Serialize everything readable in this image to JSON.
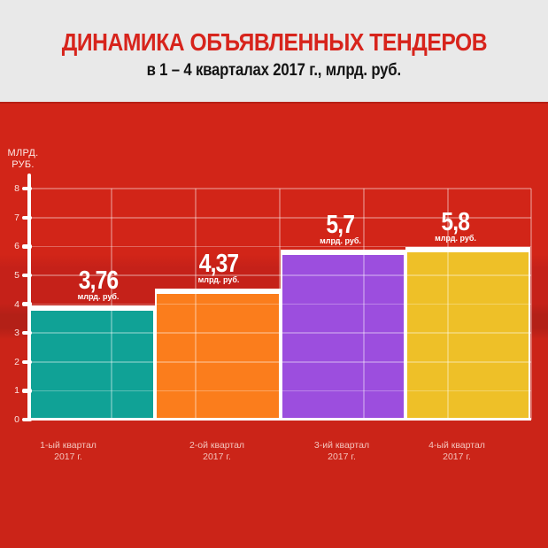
{
  "header": {
    "title": "ДИНАМИКА ОБЪЯВЛЕННЫХ ТЕНДЕРОВ",
    "subtitle": "в 1 – 4 кварталах 2017 г., млрд. руб."
  },
  "chart_data": {
    "type": "bar",
    "title": "ДИНАМИКА ОБЪЯВЛЕННЫХ ТЕНДЕРОВ",
    "subtitle": "в 1 – 4 кварталах 2017 г., млрд. руб.",
    "ylabel_lines": [
      "МЛРД.",
      "РУБ."
    ],
    "unit_label": "млрд. руб.",
    "categories": [
      [
        "1-ый квартал",
        "2017 г."
      ],
      [
        "2-ой квартал",
        "2017 г."
      ],
      [
        "3-ий квартал",
        "2017 г."
      ],
      [
        "4-ый квартал",
        "2017 г."
      ]
    ],
    "values": [
      3.76,
      4.37,
      5.7,
      5.8
    ],
    "value_labels": [
      "3,76",
      "4,37",
      "5,7",
      "5,8"
    ],
    "bar_colors": [
      "#10a296",
      "#fb7d1c",
      "#9c4ede",
      "#eec028"
    ],
    "ylim": [
      0,
      8
    ],
    "yticks": [
      0,
      1,
      2,
      3,
      4,
      5,
      6,
      7,
      8
    ],
    "grid": true,
    "legend": "none"
  },
  "theme": {
    "background_red": "#cb2418",
    "header_bg": "#e9e9e9",
    "title_color": "#d7241c",
    "subtitle_color": "#141414",
    "axis_color": "#ffffff"
  }
}
